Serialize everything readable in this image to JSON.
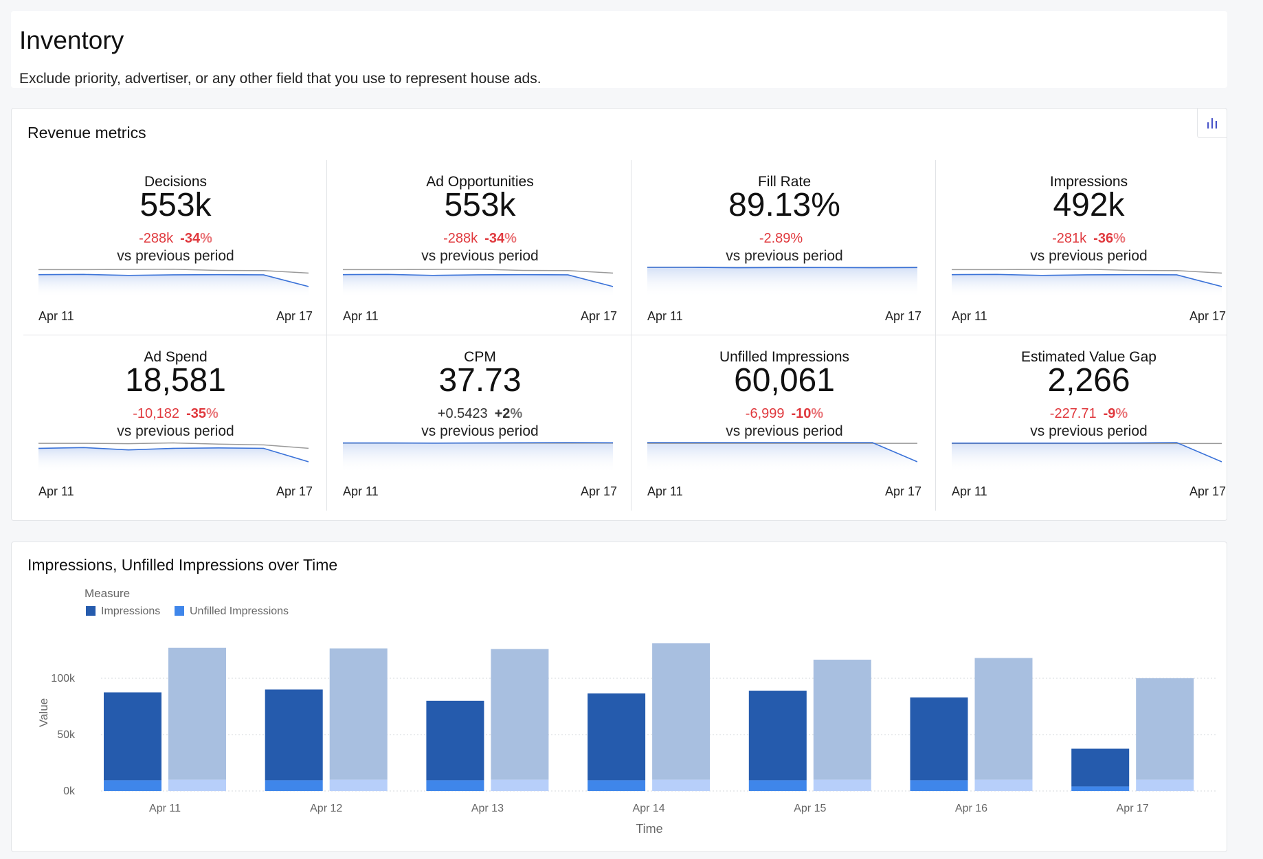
{
  "header": {
    "title": "Inventory",
    "subtitle": "Exclude priority, advertiser, or any other field that you use to represent house ads."
  },
  "metrics": {
    "title": "Revenue metrics",
    "chart_toggle_icon": "bar-chart-icon",
    "vs_label": "vs previous period",
    "x_start": "Apr 11",
    "x_end": "Apr 17",
    "tiles": [
      {
        "label": "Decisions",
        "value": "553k",
        "delta_abs": "-288k",
        "delta_pct": "-34",
        "pct_sign": "%",
        "direction": "neg",
        "current": [
          0.62,
          0.63,
          0.58,
          0.61,
          0.62,
          0.61,
          0.0
        ],
        "previous": [
          0.88,
          0.88,
          0.89,
          0.9,
          0.84,
          0.83,
          0.7
        ]
      },
      {
        "label": "Ad Opportunities",
        "value": "553k",
        "delta_abs": "-288k",
        "delta_pct": "-34",
        "pct_sign": "%",
        "direction": "neg",
        "current": [
          0.62,
          0.63,
          0.58,
          0.61,
          0.62,
          0.61,
          0.0
        ],
        "previous": [
          0.88,
          0.88,
          0.89,
          0.9,
          0.84,
          0.83,
          0.7
        ]
      },
      {
        "label": "Fill Rate",
        "value": "89.13%",
        "delta_abs": "-2.89%",
        "delta_pct": "",
        "pct_sign": "",
        "direction": "neg",
        "current": [
          1.0,
          1.0,
          0.98,
          0.99,
          0.99,
          0.98,
          0.99
        ],
        "previous": [
          1.0,
          1.0,
          0.99,
          1.0,
          0.99,
          0.99,
          1.0
        ]
      },
      {
        "label": "Impressions",
        "value": "492k",
        "delta_abs": "-281k",
        "delta_pct": "-36",
        "pct_sign": "%",
        "direction": "neg",
        "current": [
          0.62,
          0.63,
          0.58,
          0.61,
          0.62,
          0.61,
          0.0
        ],
        "previous": [
          0.88,
          0.88,
          0.89,
          0.9,
          0.84,
          0.83,
          0.7
        ]
      },
      {
        "label": "Ad Spend",
        "value": "18,581",
        "delta_abs": "-10,182",
        "delta_pct": "-35",
        "pct_sign": "%",
        "direction": "neg",
        "current": [
          0.7,
          0.74,
          0.62,
          0.7,
          0.72,
          0.7,
          0.0
        ],
        "previous": [
          0.96,
          0.96,
          0.94,
          0.98,
          0.92,
          0.88,
          0.7
        ]
      },
      {
        "label": "CPM",
        "value": "37.73",
        "delta_abs": "+0.5423",
        "delta_pct": "+2",
        "pct_sign": "%",
        "direction": "pos",
        "current": [
          0.98,
          0.98,
          0.97,
          0.98,
          0.99,
          1.0,
          0.99
        ],
        "previous": [
          0.97,
          0.97,
          0.97,
          0.97,
          0.97,
          0.97,
          0.97
        ]
      },
      {
        "label": "Unfilled Impressions",
        "value": "60,061",
        "delta_abs": "-6,999",
        "delta_pct": "-10",
        "pct_sign": "%",
        "direction": "neg",
        "current": [
          1.0,
          1.0,
          1.0,
          1.0,
          1.0,
          1.0,
          0.0
        ],
        "previous": [
          0.96,
          0.96,
          0.96,
          0.96,
          0.96,
          0.96,
          0.96
        ]
      },
      {
        "label": "Estimated Value Gap",
        "value": "2,266",
        "delta_abs": "-227.71",
        "delta_pct": "-9",
        "pct_sign": "%",
        "direction": "neg",
        "current": [
          0.97,
          0.97,
          0.97,
          0.97,
          0.98,
          1.0,
          0.0
        ],
        "previous": [
          0.95,
          0.95,
          0.95,
          0.95,
          0.95,
          0.95,
          0.95
        ]
      }
    ]
  },
  "colors": {
    "impressions": "#255bad",
    "unfilled": "#3f86ea",
    "prev_impressions": "#a8bfe0",
    "prev_unfilled": "#b7cffa",
    "spark_line": "#3a72d8",
    "spark_prev": "#9a9a9a",
    "negative": "#e0393e"
  },
  "chart_data": {
    "type": "bar",
    "title": "Impressions, Unfilled Impressions over Time",
    "legend_title": "Measure",
    "legend_position": "top-left",
    "xlabel": "Time",
    "ylabel": "Value",
    "ylim": [
      0,
      140000
    ],
    "yticks": [
      {
        "value": 0,
        "label": "0k"
      },
      {
        "value": 50000,
        "label": "50k"
      },
      {
        "value": 100000,
        "label": "100k"
      }
    ],
    "grid": true,
    "categories": [
      "Apr 11",
      "Apr 12",
      "Apr 13",
      "Apr 14",
      "Apr 15",
      "Apr 16",
      "Apr 17"
    ],
    "series": [
      {
        "name": "Impressions",
        "values": [
          78000,
          80500,
          70500,
          77000,
          79500,
          73500,
          33500
        ]
      },
      {
        "name": "Unfilled Impressions",
        "values": [
          9500,
          9500,
          9500,
          9500,
          9500,
          9500,
          4000
        ]
      }
    ],
    "previous_period": [
      {
        "total": 127000,
        "unfilled": 10000
      },
      {
        "total": 126500,
        "unfilled": 10000
      },
      {
        "total": 126000,
        "unfilled": 10000
      },
      {
        "total": 131000,
        "unfilled": 10000
      },
      {
        "total": 116500,
        "unfilled": 10000
      },
      {
        "total": 118000,
        "unfilled": 10000
      },
      {
        "total": 100000,
        "unfilled": 10000
      }
    ]
  }
}
